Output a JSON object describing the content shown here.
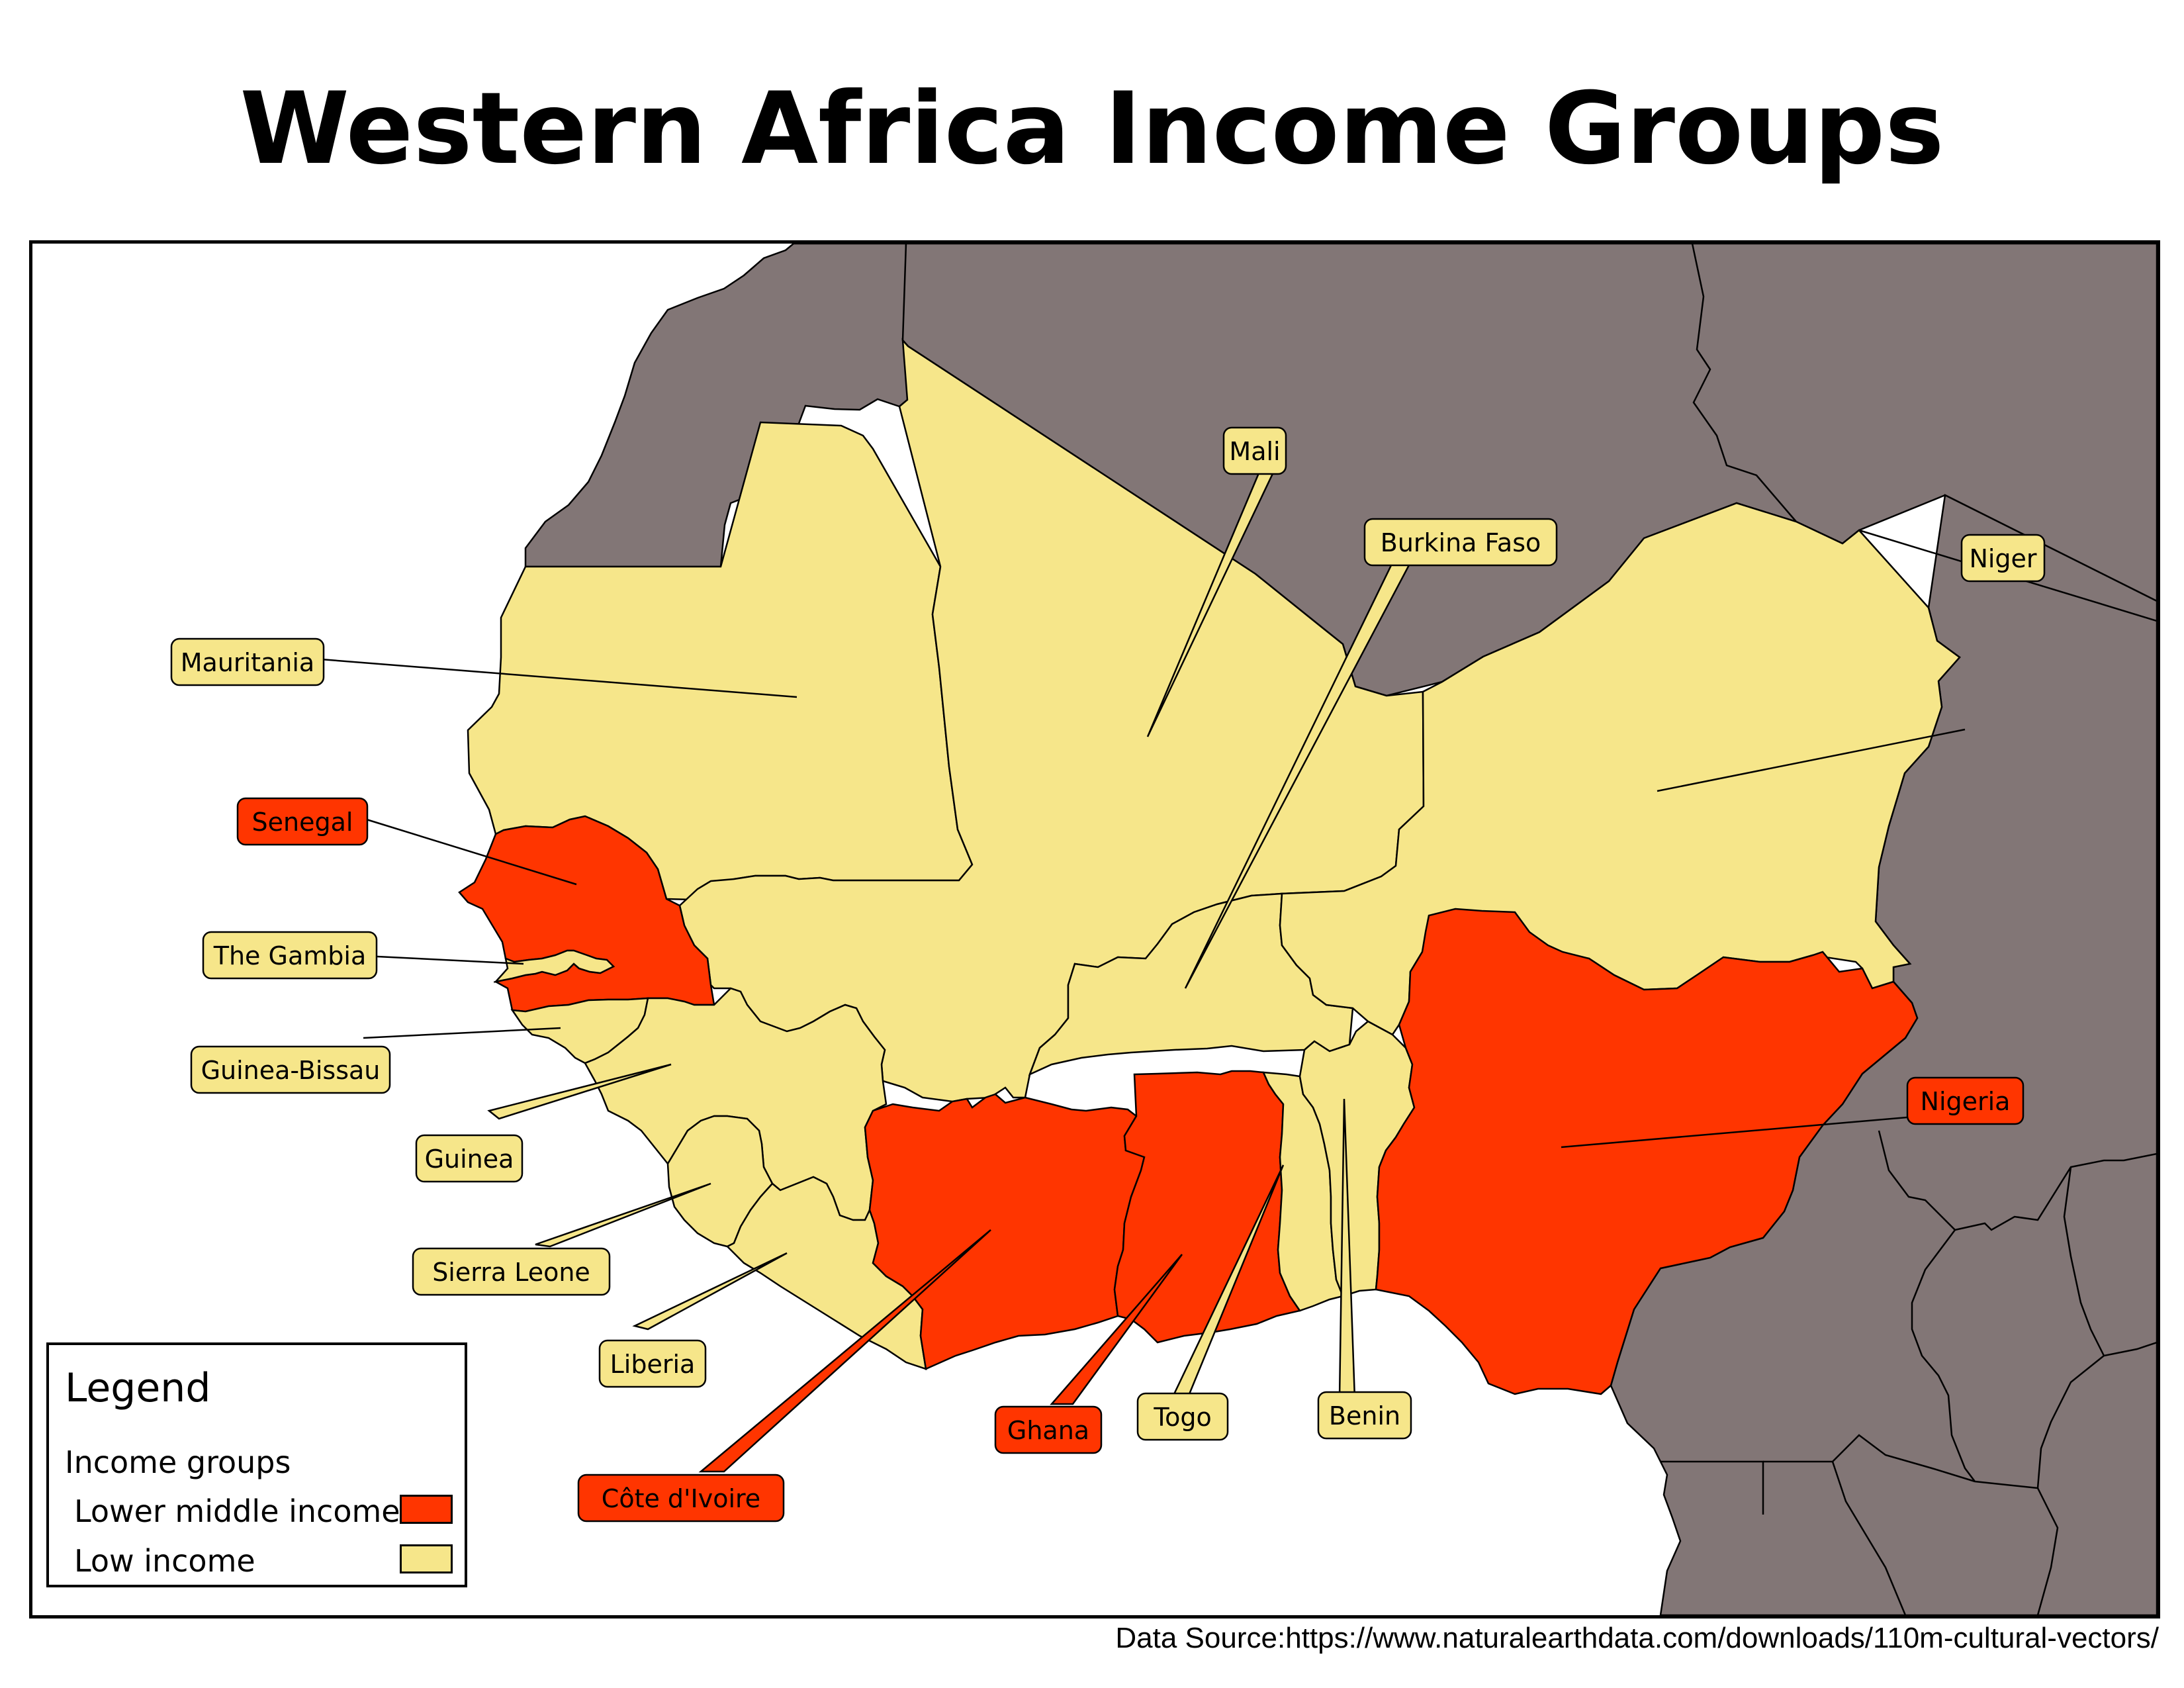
{
  "title": "Western Africa Income Groups",
  "source": "Data Source:https://www.naturalearthdata.com/downloads/110m-cultural-vectors/",
  "colors": {
    "lower_middle": "#ff3500",
    "low": "#f6e68a",
    "other_land": "#827676",
    "sea": "#ffffff"
  },
  "legend": {
    "title": "Legend",
    "subtitle": "Income groups",
    "items": [
      {
        "label": "Lower middle income",
        "group": "lower_middle"
      },
      {
        "label": "Low income",
        "group": "low"
      }
    ]
  },
  "countries": [
    {
      "name": "Mauritania",
      "group": "low"
    },
    {
      "name": "Mali",
      "group": "low"
    },
    {
      "name": "Burkina Faso",
      "group": "low"
    },
    {
      "name": "Niger",
      "group": "low"
    },
    {
      "name": "Senegal",
      "group": "lower_middle"
    },
    {
      "name": "The Gambia",
      "group": "low"
    },
    {
      "name": "Guinea-Bissau",
      "group": "low"
    },
    {
      "name": "Guinea",
      "group": "low"
    },
    {
      "name": "Sierra Leone",
      "group": "low"
    },
    {
      "name": "Liberia",
      "group": "low"
    },
    {
      "name": "Côte d'Ivoire",
      "group": "lower_middle"
    },
    {
      "name": "Ghana",
      "group": "lower_middle"
    },
    {
      "name": "Togo",
      "group": "low"
    },
    {
      "name": "Benin",
      "group": "low"
    },
    {
      "name": "Nigeria",
      "group": "lower_middle"
    }
  ]
}
